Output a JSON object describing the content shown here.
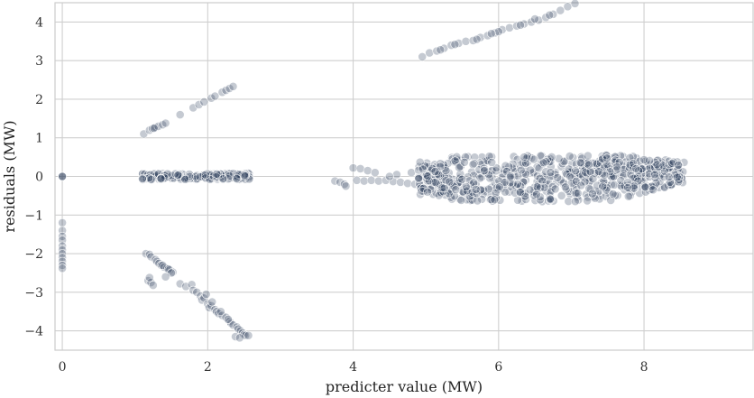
{
  "chart_data": {
    "type": "scatter",
    "title": "",
    "xlabel": "predicter value (MW)",
    "ylabel": "residuals (MW)",
    "xlim": [
      -0.1,
      9.5
    ],
    "ylim": [
      -4.5,
      4.5
    ],
    "x_ticks": [
      0,
      2,
      4,
      6,
      8
    ],
    "y_ticks": [
      -4,
      -3,
      -2,
      -1,
      0,
      1,
      2,
      3,
      4
    ],
    "grid": true,
    "point_color": "#2e3f5c",
    "point_opacity": 0.28,
    "series": [
      {
        "points": [
          [
            0.0,
            0.0
          ],
          [
            0.0,
            0.0
          ],
          [
            0.0,
            0.0
          ],
          [
            0.0,
            -1.2
          ],
          [
            0.0,
            -1.4
          ],
          [
            0.0,
            -1.55
          ],
          [
            0.0,
            -1.65
          ],
          [
            0.0,
            -1.8
          ],
          [
            0.0,
            -1.9
          ],
          [
            0.0,
            -2.0
          ],
          [
            0.0,
            -2.1
          ],
          [
            0.0,
            -2.2
          ],
          [
            0.0,
            -2.3
          ],
          [
            0.0,
            -2.38
          ],
          [
            1.12,
            1.1
          ],
          [
            1.2,
            1.2
          ],
          [
            1.24,
            1.24
          ],
          [
            1.28,
            1.27
          ],
          [
            1.32,
            1.3
          ],
          [
            1.38,
            1.34
          ],
          [
            1.42,
            1.38
          ],
          [
            1.26,
            1.25
          ],
          [
            1.62,
            1.6
          ],
          [
            1.8,
            1.78
          ],
          [
            1.88,
            1.86
          ],
          [
            1.95,
            1.93
          ],
          [
            2.05,
            2.03
          ],
          [
            2.1,
            2.08
          ],
          [
            2.2,
            2.18
          ],
          [
            2.25,
            2.23
          ],
          [
            2.3,
            2.28
          ],
          [
            2.35,
            2.33
          ],
          [
            1.15,
            -2.0
          ],
          [
            1.2,
            -2.02
          ],
          [
            1.22,
            -2.08
          ],
          [
            1.28,
            -2.15
          ],
          [
            1.3,
            -2.2
          ],
          [
            1.33,
            -2.25
          ],
          [
            1.36,
            -2.3
          ],
          [
            1.4,
            -2.35
          ],
          [
            1.44,
            -2.38
          ],
          [
            1.48,
            -2.42
          ],
          [
            1.52,
            -2.48
          ],
          [
            1.38,
            -2.3
          ],
          [
            1.46,
            -2.4
          ],
          [
            1.5,
            -2.5
          ],
          [
            1.42,
            -2.6
          ],
          [
            1.18,
            -2.7
          ],
          [
            1.22,
            -2.75
          ],
          [
            1.25,
            -2.82
          ],
          [
            1.2,
            -2.62
          ],
          [
            1.62,
            -2.78
          ],
          [
            1.7,
            -2.85
          ],
          [
            1.78,
            -2.8
          ],
          [
            1.8,
            -2.95
          ],
          [
            1.85,
            -3.0
          ],
          [
            1.9,
            -3.1
          ],
          [
            1.92,
            -3.2
          ],
          [
            1.95,
            -3.15
          ],
          [
            2.0,
            -3.3
          ],
          [
            2.02,
            -3.4
          ],
          [
            2.05,
            -3.35
          ],
          [
            2.1,
            -3.45
          ],
          [
            2.12,
            -3.5
          ],
          [
            2.15,
            -3.55
          ],
          [
            2.2,
            -3.6
          ],
          [
            2.25,
            -3.65
          ],
          [
            2.3,
            -3.75
          ],
          [
            2.32,
            -3.8
          ],
          [
            2.35,
            -3.85
          ],
          [
            2.4,
            -3.9
          ],
          [
            2.42,
            -3.95
          ],
          [
            2.45,
            -4.0
          ],
          [
            2.48,
            -4.05
          ],
          [
            2.5,
            -4.1
          ],
          [
            2.52,
            -4.12
          ],
          [
            2.56,
            -4.12
          ],
          [
            2.38,
            -4.15
          ],
          [
            2.44,
            -4.18
          ],
          [
            2.28,
            -3.7
          ],
          [
            2.18,
            -3.5
          ],
          [
            2.06,
            -3.25
          ],
          [
            1.98,
            -3.05
          ],
          [
            3.75,
            -0.12
          ],
          [
            3.82,
            -0.15
          ],
          [
            3.88,
            -0.2
          ],
          [
            3.9,
            -0.25
          ],
          [
            4.0,
            0.22
          ],
          [
            4.1,
            0.2
          ],
          [
            4.2,
            0.15
          ],
          [
            4.3,
            0.1
          ],
          [
            4.05,
            -0.1
          ],
          [
            4.15,
            -0.12
          ],
          [
            4.25,
            -0.1
          ],
          [
            4.35,
            -0.12
          ],
          [
            4.45,
            -0.1
          ],
          [
            4.55,
            -0.13
          ],
          [
            4.65,
            -0.15
          ],
          [
            4.75,
            -0.18
          ],
          [
            4.85,
            -0.2
          ],
          [
            4.95,
            -0.22
          ],
          [
            4.6,
            0.05
          ],
          [
            4.8,
            0.1
          ],
          [
            4.5,
            0.0
          ],
          [
            4.95,
            3.1
          ],
          [
            5.05,
            3.2
          ],
          [
            5.15,
            3.25
          ],
          [
            5.25,
            3.32
          ],
          [
            5.35,
            3.4
          ],
          [
            5.45,
            3.45
          ],
          [
            5.55,
            3.5
          ],
          [
            5.65,
            3.52
          ],
          [
            5.75,
            3.6
          ],
          [
            5.85,
            3.65
          ],
          [
            5.95,
            3.72
          ],
          [
            6.05,
            3.8
          ],
          [
            6.15,
            3.85
          ],
          [
            6.25,
            3.9
          ],
          [
            6.35,
            3.95
          ],
          [
            6.45,
            4.0
          ],
          [
            6.55,
            4.05
          ],
          [
            6.65,
            4.12
          ],
          [
            6.75,
            4.2
          ],
          [
            6.85,
            4.3
          ],
          [
            6.95,
            4.4
          ],
          [
            7.05,
            4.48
          ],
          [
            6.3,
            3.92
          ],
          [
            6.0,
            3.75
          ],
          [
            5.7,
            3.55
          ],
          [
            5.4,
            3.42
          ],
          [
            6.5,
            4.08
          ],
          [
            6.7,
            4.18
          ],
          [
            5.2,
            3.28
          ],
          [
            5.9,
            3.7
          ]
        ]
      }
    ]
  }
}
